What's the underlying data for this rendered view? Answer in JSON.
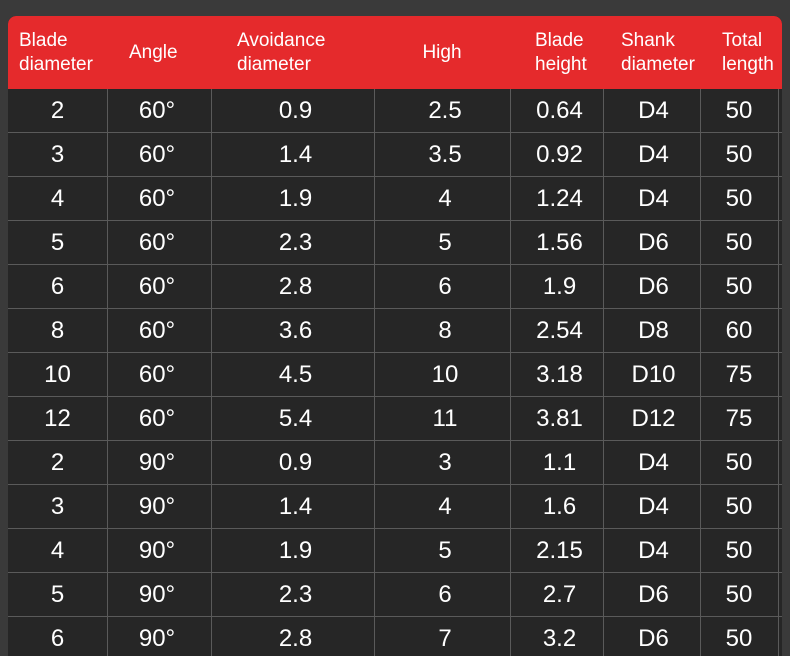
{
  "headers": [
    "Blade\ndiameter",
    "Angle",
    "Avoidance\ndiameter",
    "High",
    "Blade\nheight",
    "Shank\ndiameter",
    "Total\nlength"
  ],
  "rows": [
    [
      "2",
      "60°",
      "0.9",
      "2.5",
      "0.64",
      "D4",
      "50"
    ],
    [
      "3",
      "60°",
      "1.4",
      "3.5",
      "0.92",
      "D4",
      "50"
    ],
    [
      "4",
      "60°",
      "1.9",
      "4",
      "1.24",
      "D4",
      "50"
    ],
    [
      "5",
      "60°",
      "2.3",
      "5",
      "1.56",
      "D6",
      "50"
    ],
    [
      "6",
      "60°",
      "2.8",
      "6",
      "1.9",
      "D6",
      "50"
    ],
    [
      "8",
      "60°",
      "3.6",
      "8",
      "2.54",
      "D8",
      "60"
    ],
    [
      "10",
      "60°",
      "4.5",
      "10",
      "3.18",
      "D10",
      "75"
    ],
    [
      "12",
      "60°",
      "5.4",
      "11",
      "3.81",
      "D12",
      "75"
    ],
    [
      "2",
      "90°",
      "0.9",
      "3",
      "1.1",
      "D4",
      "50"
    ],
    [
      "3",
      "90°",
      "1.4",
      "4",
      "1.6",
      "D4",
      "50"
    ],
    [
      "4",
      "90°",
      "1.9",
      "5",
      "2.15",
      "D4",
      "50"
    ],
    [
      "5",
      "90°",
      "2.3",
      "6",
      "2.7",
      "D6",
      "50"
    ],
    [
      "6",
      "90°",
      "2.8",
      "7",
      "3.2",
      "D6",
      "50"
    ]
  ]
}
